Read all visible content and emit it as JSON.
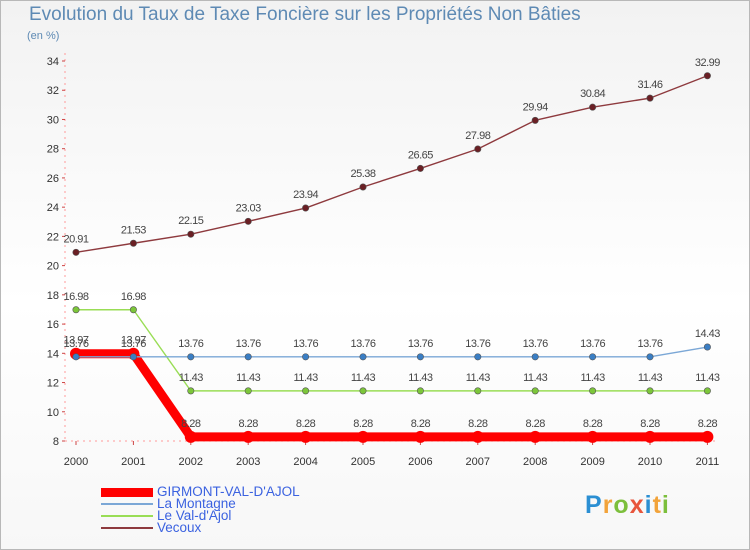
{
  "title": "Evolution du Taux de Taxe Foncière sur les Propriétés Non Bâties",
  "unit": "(en %)",
  "logo": {
    "text": "Proxiti",
    "colors": [
      "#2b8fd3",
      "#f2a33a",
      "#7cbf3c",
      "#e8553c",
      "#2b8fd3",
      "#f2a33a",
      "#7cbf3c"
    ]
  },
  "chart_data": {
    "type": "line",
    "title": "Evolution du Taux de Taxe Foncière sur les Propriétés Non Bâties",
    "ylabel": "(en %)",
    "xlabel": "",
    "ylim": [
      8,
      34
    ],
    "yticks": [
      8,
      10,
      12,
      14,
      16,
      18,
      20,
      22,
      24,
      26,
      28,
      30,
      32,
      34
    ],
    "categories": [
      "2000",
      "2001",
      "2002",
      "2003",
      "2004",
      "2005",
      "2006",
      "2007",
      "2008",
      "2009",
      "2010",
      "2011"
    ],
    "series": [
      {
        "name": "GIRMONT-VAL-D'AJOL",
        "color": "#ff0000",
        "marker": "#ff0000",
        "values": [
          13.97,
          13.97,
          8.28,
          8.28,
          8.28,
          8.28,
          8.28,
          8.28,
          8.28,
          8.28,
          8.28,
          8.28
        ],
        "labels": [
          "13.97",
          "13.97",
          "8.28",
          "8.28",
          "8.28",
          "8.28",
          "8.28",
          "8.28",
          "8.28",
          "8.28",
          "8.28",
          "8.28"
        ]
      },
      {
        "name": "La Montagne",
        "color": "#7ba7d6",
        "marker": "#3a7ec4",
        "values": [
          13.76,
          13.76,
          13.76,
          13.76,
          13.76,
          13.76,
          13.76,
          13.76,
          13.76,
          13.76,
          13.76,
          14.43
        ],
        "labels": [
          "13.76",
          "13.76",
          "13.76",
          "13.76",
          "13.76",
          "13.76",
          "13.76",
          "13.76",
          "13.76",
          "13.76",
          "13.76",
          "14.43"
        ]
      },
      {
        "name": "Le Val-d'Ajol",
        "color": "#99dd55",
        "marker": "#7cc63a",
        "values": [
          16.98,
          16.98,
          11.43,
          11.43,
          11.43,
          11.43,
          11.43,
          11.43,
          11.43,
          11.43,
          11.43,
          11.43
        ],
        "labels": [
          "16.98",
          "16.98",
          "11.43",
          "11.43",
          "11.43",
          "11.43",
          "11.43",
          "11.43",
          "11.43",
          "11.43",
          "11.43",
          "11.43"
        ]
      },
      {
        "name": "Vecoux",
        "color": "#8e3a3e",
        "marker": "#6a1f24",
        "values": [
          20.91,
          21.53,
          22.15,
          23.03,
          23.94,
          25.38,
          26.65,
          27.98,
          29.94,
          30.84,
          31.46,
          32.99
        ],
        "labels": [
          "20.91",
          "21.53",
          "22.15",
          "23.03",
          "23.94",
          "25.38",
          "26.65",
          "27.98",
          "29.94",
          "30.84",
          "31.46",
          "32.99"
        ]
      }
    ],
    "legend": [
      "GIRMONT-VAL-D'AJOL",
      "La Montagne",
      "Le Val-d'Ajol",
      "Vecoux"
    ],
    "legend_position": "bottom-left",
    "grid": false
  }
}
